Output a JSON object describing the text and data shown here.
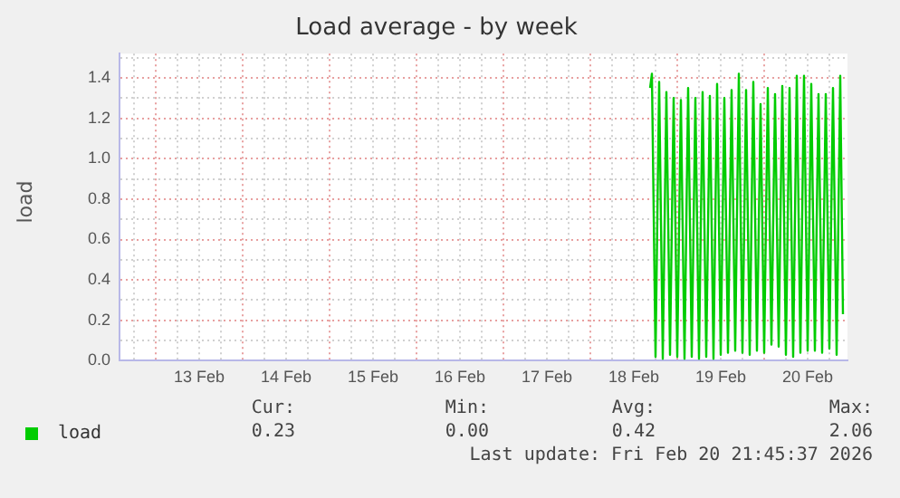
{
  "chart_data": {
    "type": "line",
    "title": "Load average - by week",
    "ylabel": "load",
    "xlim": [
      "2026-02-12T14:00",
      "2026-02-20T23:00"
    ],
    "xticks": [
      {
        "value": "2026-02-12T18:00",
        "label": null
      },
      {
        "value": "2026-02-13T00:00",
        "label": null
      },
      {
        "value": "2026-02-13T06:00",
        "label": null
      },
      {
        "value": "2026-02-13T12:00",
        "label": "13 Feb"
      },
      {
        "value": "2026-02-13T18:00",
        "label": null
      },
      {
        "value": "2026-02-14T00:00",
        "label": null
      },
      {
        "value": "2026-02-14T06:00",
        "label": null
      },
      {
        "value": "2026-02-14T12:00",
        "label": "14 Feb"
      },
      {
        "value": "2026-02-14T18:00",
        "label": null
      },
      {
        "value": "2026-02-15T00:00",
        "label": null
      },
      {
        "value": "2026-02-15T06:00",
        "label": null
      },
      {
        "value": "2026-02-15T12:00",
        "label": "15 Feb"
      },
      {
        "value": "2026-02-15T18:00",
        "label": null
      },
      {
        "value": "2026-02-16T00:00",
        "label": null
      },
      {
        "value": "2026-02-16T06:00",
        "label": null
      },
      {
        "value": "2026-02-16T12:00",
        "label": "16 Feb"
      },
      {
        "value": "2026-02-16T18:00",
        "label": null
      },
      {
        "value": "2026-02-17T00:00",
        "label": null
      },
      {
        "value": "2026-02-17T06:00",
        "label": null
      },
      {
        "value": "2026-02-17T12:00",
        "label": "17 Feb"
      },
      {
        "value": "2026-02-17T18:00",
        "label": null
      },
      {
        "value": "2026-02-18T00:00",
        "label": null
      },
      {
        "value": "2026-02-18T06:00",
        "label": null
      },
      {
        "value": "2026-02-18T12:00",
        "label": "18 Feb"
      },
      {
        "value": "2026-02-18T18:00",
        "label": null
      },
      {
        "value": "2026-02-19T00:00",
        "label": null
      },
      {
        "value": "2026-02-19T06:00",
        "label": null
      },
      {
        "value": "2026-02-19T12:00",
        "label": "19 Feb"
      },
      {
        "value": "2026-02-19T18:00",
        "label": null
      },
      {
        "value": "2026-02-20T00:00",
        "label": null
      },
      {
        "value": "2026-02-20T06:00",
        "label": null
      },
      {
        "value": "2026-02-20T12:00",
        "label": "20 Feb"
      },
      {
        "value": "2026-02-20T18:00",
        "label": null
      }
    ],
    "ylim": [
      0,
      1.52
    ],
    "yticks": [
      {
        "value": 0,
        "label": "0.0"
      },
      {
        "value": 0.1,
        "label": null
      },
      0.2,
      {
        "value": 0.3,
        "label": null
      },
      0.4,
      {
        "value": 0.5,
        "label": null
      },
      0.6,
      {
        "value": 0.7,
        "label": null
      },
      0.8,
      {
        "value": 0.9,
        "label": null
      },
      {
        "value": 1,
        "label": "1.0"
      },
      {
        "value": 1.1,
        "label": null
      },
      1.2,
      {
        "value": 1.3,
        "label": null
      },
      1.4,
      {
        "value": 1.5,
        "label": null
      }
    ],
    "grid": true,
    "legend": "bottom left",
    "marker": "none",
    "line_style": "solid",
    "series": [
      {
        "name": "load",
        "color": "#00cc00",
        "x": [
          "2026-02-18T16:30",
          "2026-02-18T17:00",
          "2026-02-18T18:00",
          "2026-02-18T19:00",
          "2026-02-18T20:00",
          "2026-02-18T21:00",
          "2026-02-18T22:00",
          "2026-02-18T23:00",
          "2026-02-19T00:00",
          "2026-02-19T01:00",
          "2026-02-19T02:00",
          "2026-02-19T03:00",
          "2026-02-19T04:00",
          "2026-02-19T05:00",
          "2026-02-19T06:00",
          "2026-02-19T07:00",
          "2026-02-19T08:00",
          "2026-02-19T09:00",
          "2026-02-19T10:00",
          "2026-02-19T11:00",
          "2026-02-19T12:00",
          "2026-02-19T13:00",
          "2026-02-19T14:00",
          "2026-02-19T15:00",
          "2026-02-19T16:00",
          "2026-02-19T17:00",
          "2026-02-19T18:00",
          "2026-02-19T19:00",
          "2026-02-19T20:00",
          "2026-02-19T21:00",
          "2026-02-19T22:00",
          "2026-02-19T23:00",
          "2026-02-20T00:00",
          "2026-02-20T01:00",
          "2026-02-20T02:00",
          "2026-02-20T03:00",
          "2026-02-20T04:00",
          "2026-02-20T05:00",
          "2026-02-20T06:00",
          "2026-02-20T07:00",
          "2026-02-20T08:00",
          "2026-02-20T09:00",
          "2026-02-20T10:00",
          "2026-02-20T11:00",
          "2026-02-20T12:00",
          "2026-02-20T13:00",
          "2026-02-20T14:00",
          "2026-02-20T15:00",
          "2026-02-20T16:00",
          "2026-02-20T17:00",
          "2026-02-20T18:00",
          "2026-02-20T19:00",
          "2026-02-20T20:00",
          "2026-02-20T21:00",
          "2026-02-20T21:45"
        ],
        "values": [
          1.35,
          1.42,
          0.02,
          1.38,
          0.01,
          1.33,
          0.03,
          1.3,
          0.02,
          1.29,
          0.01,
          1.35,
          0.02,
          1.3,
          0.01,
          1.33,
          0.02,
          1.31,
          0.01,
          1.37,
          0.03,
          1.3,
          0.04,
          1.34,
          0.05,
          1.42,
          0.04,
          1.34,
          0.03,
          1.38,
          0.05,
          1.27,
          0.04,
          1.35,
          0.08,
          1.32,
          0.07,
          1.36,
          0.03,
          1.35,
          0.02,
          1.41,
          0.04,
          1.41,
          0.05,
          1.37,
          0.05,
          1.32,
          0.04,
          1.32,
          0.06,
          1.35,
          0.03,
          1.41,
          0.23
        ]
      }
    ],
    "annotations": [
      "Cur:",
      "0.23",
      "Min:",
      "0.00",
      "Avg:",
      "0.42",
      "Max:",
      "2.06",
      "Last update: Fri Feb 20 21:45:37 2026"
    ]
  }
}
